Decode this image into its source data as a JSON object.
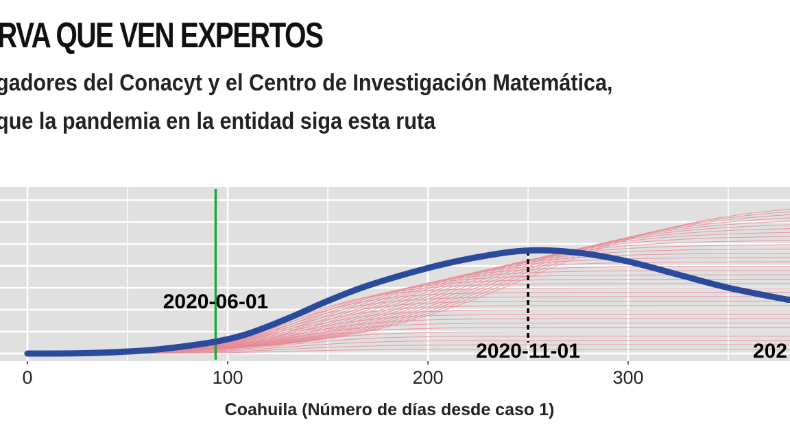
{
  "header": {
    "title": "RVA QUE VEN EXPERTOS",
    "subtitle_line1": "gadores del Conacyt y el Centro de Investigación Matemática,",
    "subtitle_line2": "que la pandemia en la entidad siga esta ruta"
  },
  "chart_data": {
    "type": "line",
    "xlabel": "Coahuila (Número de días desde caso 1)",
    "ylabel": "",
    "xlim": [
      -14,
      380
    ],
    "ylim": [
      -0.3,
      7.6
    ],
    "x_ticks": [
      0,
      100,
      200,
      300
    ],
    "x_tick_labels": [
      "0",
      "100",
      "200",
      "300"
    ],
    "grid": true,
    "background": "#e0e0e0",
    "series": [
      {
        "color": "#2a4a9c",
        "x": [
          0,
          30,
          60,
          80,
          95,
          110,
          130,
          150,
          170,
          200,
          225,
          250,
          275,
          300,
          325,
          350,
          380
        ],
        "y": [
          0,
          0.02,
          0.15,
          0.35,
          0.56,
          0.9,
          1.6,
          2.4,
          3.1,
          3.9,
          4.4,
          4.7,
          4.6,
          4.2,
          3.6,
          3.0,
          2.45
        ]
      }
    ],
    "scenario_curves": {
      "color": "#e88a96",
      "plateaus": [
        0.2,
        0.4,
        0.6,
        0.8,
        1.0,
        1.2,
        1.4,
        1.6,
        1.8,
        2.0,
        2.2,
        2.4,
        2.6,
        2.8,
        3.0,
        3.2,
        3.4,
        3.6,
        3.8,
        4.0,
        4.2,
        4.4,
        4.6,
        4.8,
        5.0,
        5.2,
        5.4,
        5.6,
        5.8,
        6.0,
        6.2,
        6.4,
        6.6,
        6.8,
        7.0
      ]
    },
    "annotations": [
      {
        "x": 94,
        "label": "2020-06-01",
        "style": "solid",
        "color": "#1aaa3a"
      },
      {
        "x": 250,
        "label": "2020-11-01",
        "style": "dotted",
        "color": "#000000"
      },
      {
        "x": 365,
        "label": "202",
        "style": "none",
        "color": "#000000"
      }
    ]
  }
}
